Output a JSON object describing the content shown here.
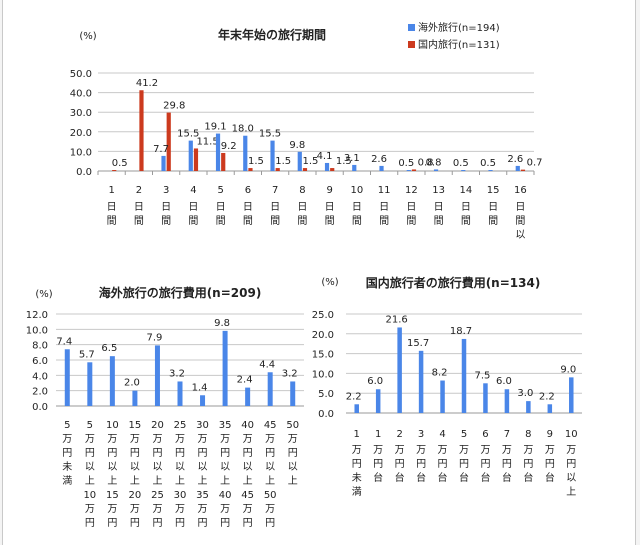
{
  "colors": {
    "overseas": "#4a86e8",
    "domestic": "#cc3a1e",
    "grid": "#c8c8c8",
    "axis": "#9a9a9a",
    "text": "#222222"
  },
  "chart_data": [
    {
      "type": "bar",
      "title": "年末年始の旅行期間",
      "unit_label": "(%)",
      "ylim": [
        0,
        50
      ],
      "yticks": [
        "0.0",
        "10.0",
        "20.0",
        "30.0",
        "40.0",
        "50.0"
      ],
      "grid": true,
      "legend_position": "top-right",
      "categories": [
        "1日間",
        "2日間",
        "3日間",
        "4日間",
        "5日間",
        "6日間",
        "7日間",
        "8日間",
        "9日間",
        "10日間",
        "11日間",
        "12日間",
        "13日間",
        "14日間",
        "15日間",
        "16日間以"
      ],
      "series": [
        {
          "name": "海外旅行(n=194)",
          "values": [
            0,
            0,
            7.7,
            15.5,
            19.1,
            18.0,
            15.5,
            9.8,
            4.1,
            3.1,
            2.6,
            0.5,
            0.8,
            0.5,
            0.5,
            2.6
          ],
          "labels": [
            "",
            "",
            "7.7",
            "15.5",
            "19.1",
            "18.0",
            "15.5",
            "9.8",
            "4.1",
            "3.1",
            "2.6",
            "0.5",
            "0.8",
            "0.5",
            "0.5",
            "2.6"
          ]
        },
        {
          "name": "国内旅行(n=131)",
          "values": [
            0.5,
            41.2,
            29.8,
            11.5,
            9.2,
            1.5,
            1.5,
            1.5,
            1.5,
            0,
            0,
            0.8,
            0,
            0,
            0,
            0.7
          ],
          "labels": [
            "0.5",
            "41.2",
            "29.8",
            "11.5",
            "9.2",
            "1.5",
            "1.5",
            "1.5",
            "1.5",
            "",
            "",
            "0.8",
            "",
            "",
            "",
            "0.7"
          ]
        }
      ]
    },
    {
      "type": "bar",
      "title": "海外旅行の旅行費用(n=209)",
      "unit_label": "(%)",
      "ylim": [
        0,
        12
      ],
      "yticks": [
        "0.0",
        "2.0",
        "4.0",
        "6.0",
        "8.0",
        "10.0",
        "12.0"
      ],
      "grid": true,
      "categories": [
        "5万円未満",
        "5万円以上10万円",
        "10万円以上15万円",
        "15万円以上20万円",
        "20万円以上25万円",
        "25万円以上30万円",
        "30万円以上35万円",
        "35万円以上40万円",
        "40万円以上45万円",
        "45万円以上50万円",
        "50万円以上"
      ],
      "values": [
        7.4,
        5.7,
        6.5,
        2.0,
        7.9,
        3.2,
        1.4,
        9.8,
        2.4,
        4.4,
        3.2
      ],
      "labels": [
        "7.4",
        "5.7",
        "6.5",
        "2.0",
        "7.9",
        "3.2",
        "1.4",
        "9.8",
        "2.4",
        "4.4",
        "3.2"
      ]
    },
    {
      "type": "bar",
      "title": "国内旅行者の旅行費用(n=134)",
      "unit_label": "(%)",
      "ylim": [
        0,
        25
      ],
      "yticks": [
        "0.0",
        "5.0",
        "10.0",
        "15.0",
        "20.0",
        "25.0"
      ],
      "grid": true,
      "categories": [
        "1万円未満",
        "1万円台",
        "2万円台",
        "3万円台",
        "4万円台",
        "5万円台",
        "6万円台",
        "7万円台",
        "8万円台",
        "9万円台",
        "10万円以上"
      ],
      "values": [
        2.2,
        6.0,
        21.6,
        15.7,
        8.2,
        18.7,
        7.5,
        6.0,
        3.0,
        2.2,
        9.0
      ],
      "labels": [
        "2.2",
        "6.0",
        "21.6",
        "15.7",
        "8.2",
        "18.7",
        "7.5",
        "6.0",
        "3.0",
        "2.2",
        "9.0"
      ]
    }
  ]
}
